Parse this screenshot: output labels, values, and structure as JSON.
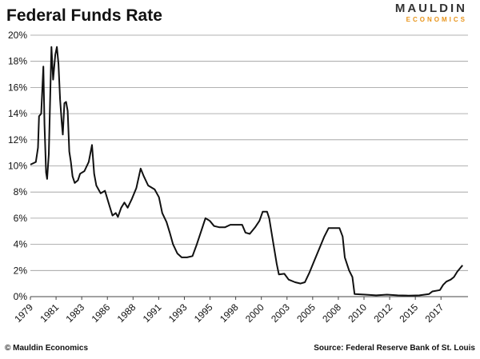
{
  "chart_data": {
    "type": "line",
    "title": "Federal Funds Rate",
    "x": [
      1979.0,
      1979.5,
      1979.7,
      1979.8,
      1980.0,
      1980.2,
      1980.3,
      1980.45,
      1980.55,
      1980.7,
      1980.85,
      1980.95,
      1981.1,
      1981.3,
      1981.45,
      1981.6,
      1981.75,
      1981.9,
      1982.0,
      1982.15,
      1982.3,
      1982.45,
      1982.6,
      1982.75,
      1982.9,
      1983.1,
      1983.4,
      1983.6,
      1984.0,
      1984.4,
      1984.7,
      1984.9,
      1985.1,
      1985.5,
      1985.9,
      1986.3,
      1986.6,
      1986.9,
      1987.1,
      1987.4,
      1987.7,
      1988.0,
      1988.4,
      1988.8,
      1989.2,
      1989.5,
      1989.9,
      1990.5,
      1990.9,
      1991.2,
      1991.6,
      1991.9,
      1992.2,
      1992.6,
      1993.0,
      1993.5,
      1994.0,
      1994.4,
      1994.8,
      1995.2,
      1995.6,
      1996.0,
      1996.5,
      1997.0,
      1997.5,
      1998.0,
      1998.6,
      1998.9,
      1999.3,
      1999.8,
      2000.2,
      2000.5,
      2000.9,
      2001.1,
      2001.4,
      2001.8,
      2002.0,
      2002.5,
      2002.9,
      2003.5,
      2004.0,
      2004.4,
      2004.8,
      2005.3,
      2005.8,
      2006.2,
      2006.6,
      2007.0,
      2007.6,
      2007.9,
      2008.1,
      2008.5,
      2008.8,
      2009.0,
      2010.0,
      2011.0,
      2012.0,
      2013.0,
      2014.0,
      2015.0,
      2015.9,
      2016.2,
      2016.9,
      2017.2,
      2017.5,
      2017.9,
      2018.2,
      2018.5,
      2018.8,
      2019.0
    ],
    "values": [
      10.1,
      10.3,
      11.4,
      13.8,
      14.0,
      17.6,
      13.2,
      9.5,
      9.0,
      10.9,
      15.9,
      19.1,
      16.6,
      18.5,
      19.1,
      17.8,
      15.1,
      13.3,
      12.4,
      14.8,
      14.9,
      14.2,
      11.1,
      10.3,
      9.2,
      8.7,
      8.9,
      9.4,
      9.6,
      10.3,
      11.6,
      9.4,
      8.5,
      7.9,
      8.1,
      7.0,
      6.2,
      6.4,
      6.1,
      6.8,
      7.2,
      6.8,
      7.5,
      8.3,
      9.8,
      9.2,
      8.5,
      8.2,
      7.6,
      6.4,
      5.7,
      4.9,
      4.0,
      3.3,
      3.0,
      3.0,
      3.1,
      4.0,
      5.0,
      6.0,
      5.8,
      5.4,
      5.3,
      5.3,
      5.5,
      5.5,
      5.5,
      4.9,
      4.8,
      5.3,
      5.8,
      6.5,
      6.5,
      6.0,
      4.5,
      2.5,
      1.7,
      1.75,
      1.3,
      1.1,
      1.0,
      1.1,
      1.8,
      2.8,
      3.8,
      4.6,
      5.25,
      5.25,
      5.25,
      4.6,
      3.0,
      2.0,
      1.5,
      0.2,
      0.15,
      0.1,
      0.15,
      0.1,
      0.08,
      0.1,
      0.2,
      0.4,
      0.5,
      0.9,
      1.15,
      1.3,
      1.5,
      1.9,
      2.2,
      2.4
    ],
    "color": "#111111",
    "xlim": [
      1979,
      2019.5
    ],
    "xticks": [
      {
        "value": 1979,
        "label": "1979"
      },
      {
        "value": 1981.375,
        "label": "1981"
      },
      {
        "value": 1983.75,
        "label": "1983"
      },
      {
        "value": 1986.125,
        "label": "1986"
      },
      {
        "value": 1988.5,
        "label": "1988"
      },
      {
        "value": 1990.875,
        "label": "1991"
      },
      {
        "value": 1993.25,
        "label": "1993"
      },
      {
        "value": 1995.625,
        "label": "1995"
      },
      {
        "value": 1998,
        "label": "1998"
      },
      {
        "value": 2000.375,
        "label": "2000"
      },
      {
        "value": 2002.75,
        "label": "2003"
      },
      {
        "value": 2005.125,
        "label": "2005"
      },
      {
        "value": 2007.5,
        "label": "2008"
      },
      {
        "value": 2009.875,
        "label": "2010"
      },
      {
        "value": 2012.25,
        "label": "2012"
      },
      {
        "value": 2014.625,
        "label": "2015"
      },
      {
        "value": 2017,
        "label": "2017"
      }
    ],
    "ylim": [
      0,
      20
    ],
    "yticks": [
      {
        "value": 0,
        "label": "0%"
      },
      {
        "value": 2,
        "label": "2%"
      },
      {
        "value": 4,
        "label": "4%"
      },
      {
        "value": 6,
        "label": "6%"
      },
      {
        "value": 8,
        "label": "8%"
      },
      {
        "value": 10,
        "label": "10%"
      },
      {
        "value": 12,
        "label": "12%"
      },
      {
        "value": 14,
        "label": "14%"
      },
      {
        "value": 16,
        "label": "16%"
      },
      {
        "value": 18,
        "label": "18%"
      },
      {
        "value": 20,
        "label": "20%"
      }
    ],
    "grid": true
  },
  "logo": {
    "line1": "MAULDIN",
    "line2": "ECONOMICS"
  },
  "footer": {
    "left": "© Mauldin Economics",
    "right": "Source: Federal Reserve Bank of St. Louis"
  }
}
